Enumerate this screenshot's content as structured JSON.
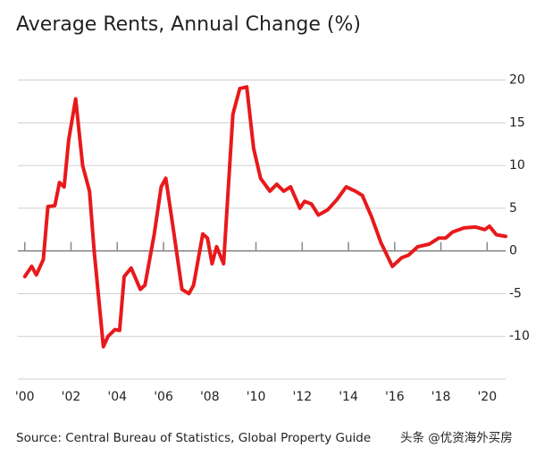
{
  "chart_data": {
    "type": "line",
    "title": "Average Rents, Annual Change (%)",
    "source": "Source: Central Bureau of Statistics, Global Property Guide",
    "watermark": "头条 @优资海外买房",
    "color": "#e8191b",
    "grid": true,
    "xlim": [
      1999.7,
      2020.8
    ],
    "ylim": [
      -15,
      21
    ],
    "yticks": [
      20,
      15,
      10,
      5,
      0,
      -5,
      -10
    ],
    "xticks": [
      {
        "value": 2000,
        "label": "'00"
      },
      {
        "value": 2002,
        "label": "'02"
      },
      {
        "value": 2004,
        "label": "'04"
      },
      {
        "value": 2006,
        "label": "'06"
      },
      {
        "value": 2008,
        "label": "'08"
      },
      {
        "value": 2010,
        "label": "'10"
      },
      {
        "value": 2012,
        "label": "'12"
      },
      {
        "value": 2014,
        "label": "'14"
      },
      {
        "value": 2016,
        "label": "'16"
      },
      {
        "value": 2018,
        "label": "'18"
      },
      {
        "value": 2020,
        "label": "'20"
      }
    ],
    "x": [
      2000.0,
      2000.3,
      2000.5,
      2000.8,
      2001.0,
      2001.3,
      2001.5,
      2001.7,
      2001.9,
      2002.2,
      2002.5,
      2002.8,
      2003.0,
      2003.4,
      2003.6,
      2003.9,
      2004.1,
      2004.3,
      2004.6,
      2005.0,
      2005.2,
      2005.6,
      2005.9,
      2006.1,
      2006.4,
      2006.8,
      2007.1,
      2007.3,
      2007.7,
      2007.9,
      2008.1,
      2008.3,
      2008.6,
      2009.0,
      2009.3,
      2009.6,
      2009.9,
      2010.2,
      2010.6,
      2010.9,
      2011.2,
      2011.5,
      2011.9,
      2012.1,
      2012.4,
      2012.7,
      2013.1,
      2013.5,
      2013.9,
      2014.3,
      2014.6,
      2015.0,
      2015.4,
      2015.9,
      2016.3,
      2016.6,
      2017.0,
      2017.5,
      2017.9,
      2018.2,
      2018.5,
      2019.0,
      2019.5,
      2019.9,
      2020.1,
      2020.4,
      2020.8
    ],
    "values": [
      -3,
      -1.8,
      -2.8,
      -1,
      5.2,
      5.3,
      8,
      7.5,
      13,
      17.8,
      10,
      7,
      0,
      -11.2,
      -10,
      -9.2,
      -9.3,
      -3,
      -2,
      -4.5,
      -4,
      2,
      7.5,
      8.5,
      3,
      -4.5,
      -5,
      -4,
      2,
      1.5,
      -1.5,
      0.5,
      -1.5,
      16,
      19,
      19.2,
      12,
      8.5,
      7,
      7.8,
      7,
      7.5,
      5,
      5.8,
      5.5,
      4.2,
      4.8,
      6,
      7.5,
      7,
      6.5,
      4,
      1,
      -1.8,
      -0.8,
      -0.5,
      0.5,
      0.8,
      1.5,
      1.5,
      2.2,
      2.7,
      2.8,
      2.5,
      2.9,
      1.9,
      1.7
    ]
  }
}
